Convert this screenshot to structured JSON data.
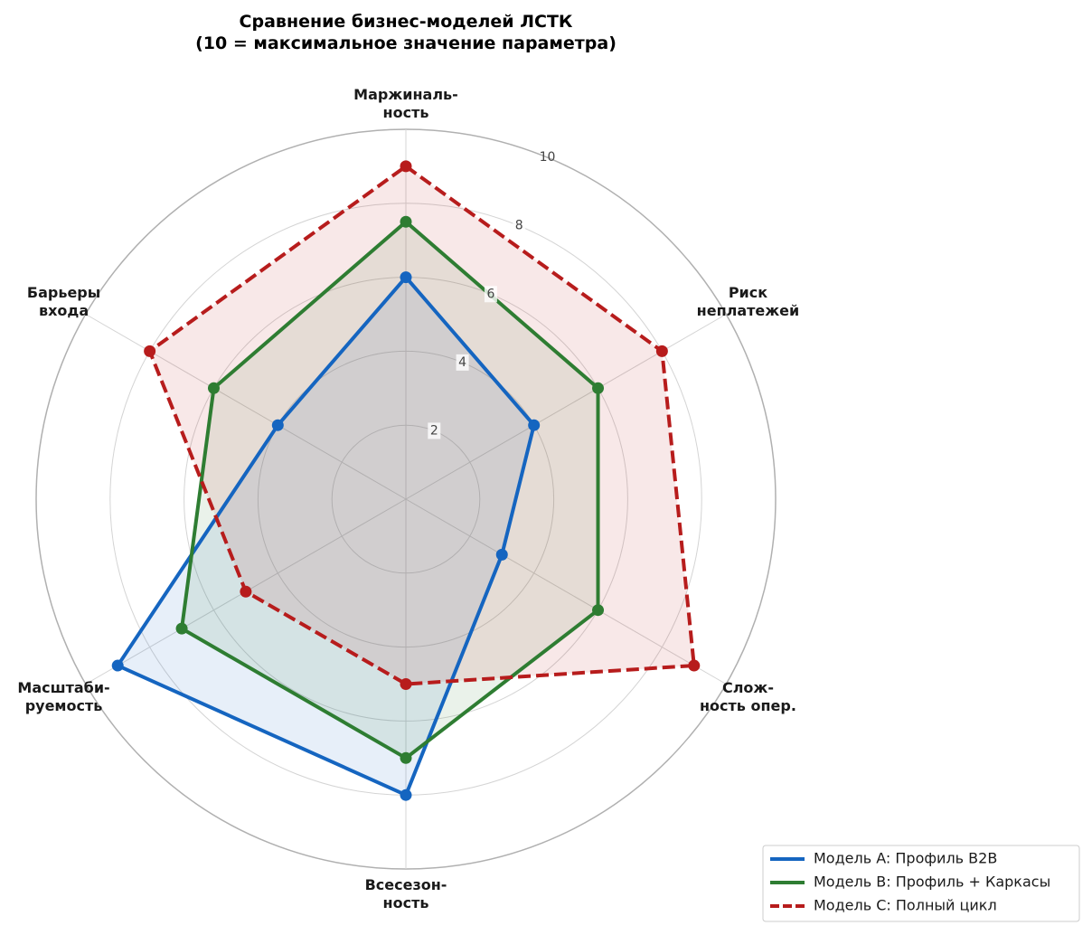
{
  "chart_data": {
    "type": "radar",
    "title": "Сравнение бизнес-моделей ЛСТК\n(10 = максимальное значение параметра)",
    "categories": [
      "Маржиналь-\nность",
      "Риск\nнеплатежей",
      "Слож-\nность опер.",
      "Всесезон-\nность",
      "Масштаби-\nруемость",
      "Барьеры\nвхода"
    ],
    "ylim": [
      0,
      10
    ],
    "yticks": [
      2,
      4,
      6,
      8,
      10
    ],
    "grid": true,
    "legend": "lower right",
    "series": [
      {
        "name": "Модель A: Профиль B2B",
        "color": "#1565c0",
        "linestyle": "solid",
        "values": [
          6,
          4,
          3,
          8,
          9,
          4
        ]
      },
      {
        "name": "Модель B: Профиль + Каркасы",
        "color": "#2e7d32",
        "linestyle": "solid",
        "values": [
          7.5,
          6,
          6,
          7,
          7,
          6
        ]
      },
      {
        "name": "Модель C: Полный цикл",
        "color": "#b71c1c",
        "linestyle": "dashed",
        "values": [
          9,
          8,
          9,
          5,
          5,
          8
        ]
      }
    ]
  }
}
